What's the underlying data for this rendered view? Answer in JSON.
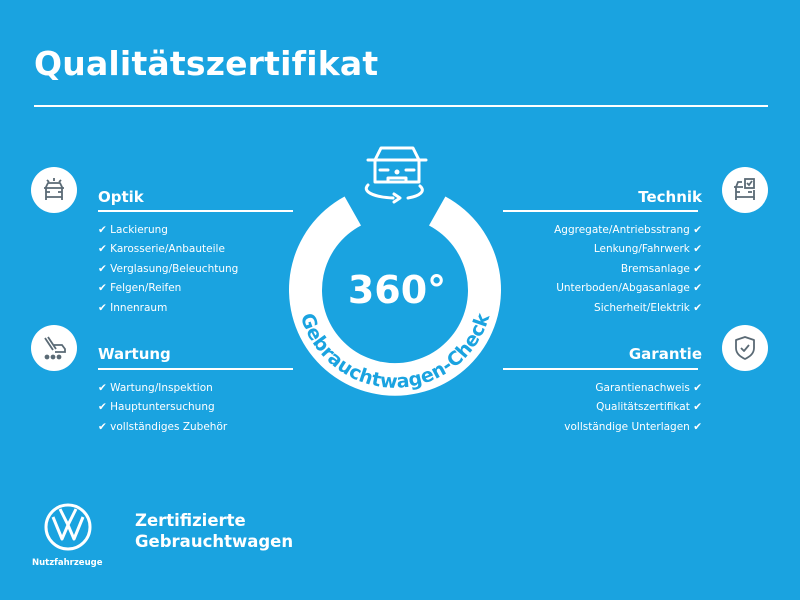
{
  "title": "Qualitätszertifikat",
  "colors": {
    "background": "#1aa3e0",
    "foreground": "#ffffff",
    "icon": "#5a6a75"
  },
  "center": {
    "degrees": "360°",
    "arc_text": "Gebrauchtwagen-Check",
    "icon": "car-rotate-icon"
  },
  "check_mark": "✔",
  "sections": {
    "optik": {
      "title": "Optik",
      "icon": "car-light-icon",
      "items": [
        "Lackierung",
        "Karosserie/Anbauteile",
        "Verglasung/Beleuchtung",
        "Felgen/Reifen",
        "Innenraum"
      ]
    },
    "wartung": {
      "title": "Wartung",
      "icon": "service-tools-icon",
      "items": [
        "Wartung/Inspektion",
        "Hauptuntersuchung",
        "vollständiges Zubehör"
      ]
    },
    "technik": {
      "title": "Technik",
      "icon": "car-checklist-icon",
      "items": [
        "Aggregate/Antriebsstrang",
        "Lenkung/Fahrwerk",
        "Bremsanlage",
        "Unterboden/Abgasanlage",
        "Sicherheit/Elektrik"
      ]
    },
    "garantie": {
      "title": "Garantie",
      "icon": "shield-check-icon",
      "items": [
        "Garantienachweis",
        "Qualitätszertifikat",
        "vollständige Unterlagen"
      ]
    }
  },
  "brand": {
    "logo_text": "VW",
    "logo_sub": "Nutzfahrzeuge",
    "line1": "Zertifizierte",
    "line2": "Gebrauchtwagen"
  }
}
